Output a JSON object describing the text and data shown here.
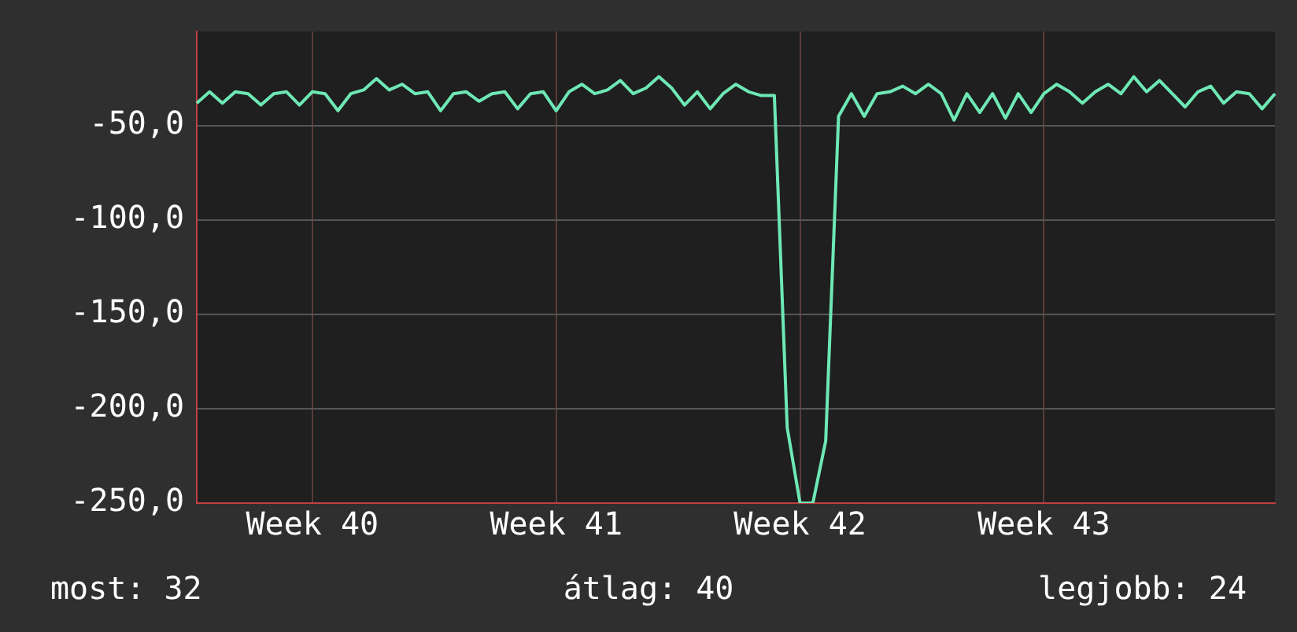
{
  "chart_data": {
    "type": "line",
    "categories": [
      null,
      null,
      null,
      null,
      null,
      null,
      null,
      null,
      null,
      "Week 40",
      null,
      null,
      null,
      null,
      null,
      null,
      null,
      null,
      null,
      null,
      null,
      null,
      null,
      null,
      null,
      null,
      null,
      null,
      "Week 41",
      null,
      null,
      null,
      null,
      null,
      null,
      null,
      null,
      null,
      null,
      null,
      null,
      null,
      null,
      null,
      null,
      null,
      null,
      "Week 42",
      null,
      null,
      null,
      null,
      null,
      null,
      null,
      null,
      null,
      null,
      null,
      null,
      null,
      null,
      null,
      null,
      null,
      null,
      "Week 43",
      null,
      null,
      null,
      null,
      null,
      null,
      null,
      null,
      null,
      null,
      null,
      null,
      null,
      null,
      null,
      null,
      null,
      null
    ],
    "series": [
      {
        "color": "#6ee8b4",
        "values": [
          -38,
          -32,
          -38,
          -32,
          -33,
          -39,
          -33,
          -32,
          -39,
          -32,
          -33,
          -42,
          -33,
          -31,
          -25,
          -31,
          -28,
          -33,
          -32,
          -42,
          -33,
          -32,
          -37,
          -33,
          -32,
          -41,
          -33,
          -32,
          -42,
          -32,
          -28,
          -33,
          -31,
          -26,
          -33,
          -30,
          -24,
          -30,
          -39,
          -32,
          -41,
          -33,
          -28,
          -32,
          -34,
          -34,
          -210,
          -250,
          -250,
          -217,
          -45,
          -33,
          -45,
          -33,
          -32,
          -29,
          -33,
          -28,
          -33,
          -47,
          -33,
          -43,
          -33,
          -46,
          -33,
          -43,
          -33,
          -28,
          -32,
          -38,
          -32,
          -28,
          -33,
          -24,
          -32,
          -26,
          -33,
          -40,
          -32,
          -29,
          -38,
          -32,
          -33,
          -41,
          -33
        ]
      }
    ],
    "ylim": [
      -250,
      0
    ],
    "yticks": [
      {
        "value": -50,
        "label": "-50,0"
      },
      {
        "value": -100,
        "label": "-100,0"
      },
      {
        "value": -150,
        "label": "-150,0"
      },
      {
        "value": -200,
        "label": "-200,0"
      },
      {
        "value": -250,
        "label": "-250,0"
      }
    ],
    "grid": true,
    "legend": false,
    "marker": "none",
    "line_style": "solid",
    "annotations": [
      "most: 32",
      "átlag: 40",
      "legjobb: 24"
    ]
  }
}
